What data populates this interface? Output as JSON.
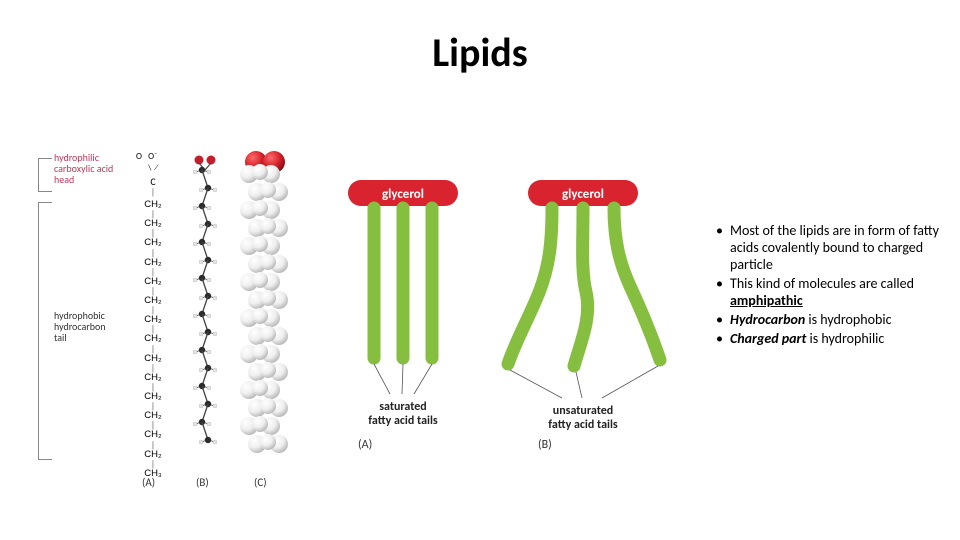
{
  "title": "Lipids",
  "left_figure": {
    "label_head": "hydrophilic carboxylic acid head",
    "label_head_color": "#c13a5a",
    "label_tail": "hydrophobic hydrocarbon tail",
    "colA": {
      "chain_unit": "CH₂",
      "chain_count": 14,
      "terminal": "CH₃",
      "sub": "(A)"
    },
    "colB": {
      "head_colors": [
        "#c41e2a",
        "#c41e2a"
      ],
      "carbon_color": "#2b2b2b",
      "hydrogen_color": "#e6e6e6",
      "bond_color": "#444444",
      "chain_length": 16,
      "sub": "(B)"
    },
    "colC": {
      "head_color": "#c41e2a",
      "shell_color": "#f0f0f0",
      "shell_hilite": "#ffffff",
      "shell_shadow": "#bdbdbd",
      "chain_length": 16,
      "sub": "(C)"
    }
  },
  "mid_figure": {
    "glycerol_label": "glycerol",
    "glycerol_color": "#d9232e",
    "tail_color": "#86bf3f",
    "tail_stroke_width": 13,
    "panelA": {
      "caption1": "saturated",
      "caption2": "fatty acid tails",
      "sub": "(A)"
    },
    "panelB": {
      "caption1": "unsaturated",
      "caption2": "fatty acid tails",
      "sub": "(B)"
    }
  },
  "bullets": [
    {
      "text": "Most of the lipids are in form of fatty acids covalently bound to charged particle"
    },
    {
      "text": "This kind of molecules are called ",
      "em_u": "amphipathic"
    },
    {
      "em_i": "Hydrocarbon",
      "text": " is hydrophobic"
    },
    {
      "em_i": "Charged part",
      "text": " is hydrophilic"
    }
  ],
  "colors": {
    "bg": "#ffffff",
    "text": "#000000"
  }
}
